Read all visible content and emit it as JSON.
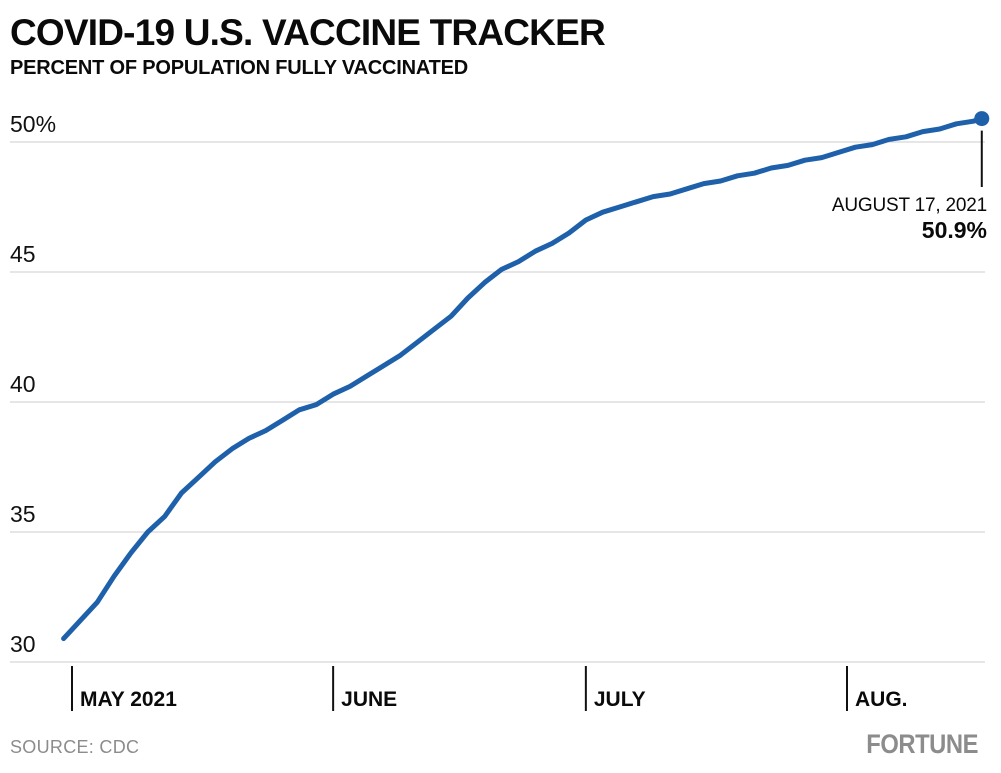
{
  "header": {
    "title": "COVID-19 U.S. VACCINE TRACKER",
    "subtitle": "PERCENT OF POPULATION FULLY VACCINATED"
  },
  "annotation": {
    "date_label": "AUGUST 17, 2021",
    "value_label": "50.9%"
  },
  "footer": {
    "source": "SOURCE: CDC",
    "brand": "FORTUNE"
  },
  "colors": {
    "line": "#1e61aa",
    "grid": "#cdcdcd",
    "axis_tick": "#111111",
    "text": "#0a0a0a",
    "muted": "#8c8c8c"
  },
  "chart_data": {
    "type": "line",
    "title": "COVID-19 U.S. VACCINE TRACKER",
    "subtitle": "PERCENT OF POPULATION FULLY VACCINATED",
    "xlabel": "",
    "ylabel": "Percent of population fully vaccinated",
    "ylim": [
      30,
      51
    ],
    "grid": "horizontal",
    "legend": "none",
    "y_axis": {
      "ticks": [
        {
          "value": 50,
          "label": "50%"
        },
        {
          "value": 45,
          "label": "45"
        },
        {
          "value": 40,
          "label": "40"
        },
        {
          "value": 35,
          "label": "35"
        },
        {
          "value": 30,
          "label": "30"
        }
      ]
    },
    "x_axis": {
      "ticks": [
        {
          "date": "2021-05-01",
          "label": "MAY 2021"
        },
        {
          "date": "2021-06-01",
          "label": "JUNE"
        },
        {
          "date": "2021-07-01",
          "label": "JULY"
        },
        {
          "date": "2021-08-01",
          "label": "AUG."
        }
      ]
    },
    "series": [
      {
        "name": "Percent fully vaccinated",
        "end_label": {
          "date": "AUGUST 17, 2021",
          "value": "50.9%"
        },
        "points": [
          [
            "2021-04-30",
            30.9
          ],
          [
            "2021-05-02",
            31.6
          ],
          [
            "2021-05-04",
            32.3
          ],
          [
            "2021-05-06",
            33.3
          ],
          [
            "2021-05-08",
            34.2
          ],
          [
            "2021-05-10",
            35.0
          ],
          [
            "2021-05-12",
            35.6
          ],
          [
            "2021-05-14",
            36.5
          ],
          [
            "2021-05-16",
            37.1
          ],
          [
            "2021-05-18",
            37.7
          ],
          [
            "2021-05-20",
            38.2
          ],
          [
            "2021-05-22",
            38.6
          ],
          [
            "2021-05-24",
            38.9
          ],
          [
            "2021-05-26",
            39.3
          ],
          [
            "2021-05-28",
            39.7
          ],
          [
            "2021-05-30",
            39.9
          ],
          [
            "2021-06-01",
            40.3
          ],
          [
            "2021-06-03",
            40.6
          ],
          [
            "2021-06-05",
            41.0
          ],
          [
            "2021-06-07",
            41.4
          ],
          [
            "2021-06-09",
            41.8
          ],
          [
            "2021-06-11",
            42.3
          ],
          [
            "2021-06-13",
            42.8
          ],
          [
            "2021-06-15",
            43.3
          ],
          [
            "2021-06-17",
            44.0
          ],
          [
            "2021-06-19",
            44.6
          ],
          [
            "2021-06-21",
            45.1
          ],
          [
            "2021-06-23",
            45.4
          ],
          [
            "2021-06-25",
            45.8
          ],
          [
            "2021-06-27",
            46.1
          ],
          [
            "2021-06-29",
            46.5
          ],
          [
            "2021-07-01",
            47.0
          ],
          [
            "2021-07-03",
            47.3
          ],
          [
            "2021-07-05",
            47.5
          ],
          [
            "2021-07-07",
            47.7
          ],
          [
            "2021-07-09",
            47.9
          ],
          [
            "2021-07-11",
            48.0
          ],
          [
            "2021-07-13",
            48.2
          ],
          [
            "2021-07-15",
            48.4
          ],
          [
            "2021-07-17",
            48.5
          ],
          [
            "2021-07-19",
            48.7
          ],
          [
            "2021-07-21",
            48.8
          ],
          [
            "2021-07-23",
            49.0
          ],
          [
            "2021-07-25",
            49.1
          ],
          [
            "2021-07-27",
            49.3
          ],
          [
            "2021-07-29",
            49.4
          ],
          [
            "2021-07-31",
            49.6
          ],
          [
            "2021-08-02",
            49.8
          ],
          [
            "2021-08-04",
            49.9
          ],
          [
            "2021-08-06",
            50.1
          ],
          [
            "2021-08-08",
            50.2
          ],
          [
            "2021-08-10",
            50.4
          ],
          [
            "2021-08-12",
            50.5
          ],
          [
            "2021-08-14",
            50.7
          ],
          [
            "2021-08-16",
            50.8
          ],
          [
            "2021-08-17",
            50.9
          ]
        ]
      }
    ]
  }
}
